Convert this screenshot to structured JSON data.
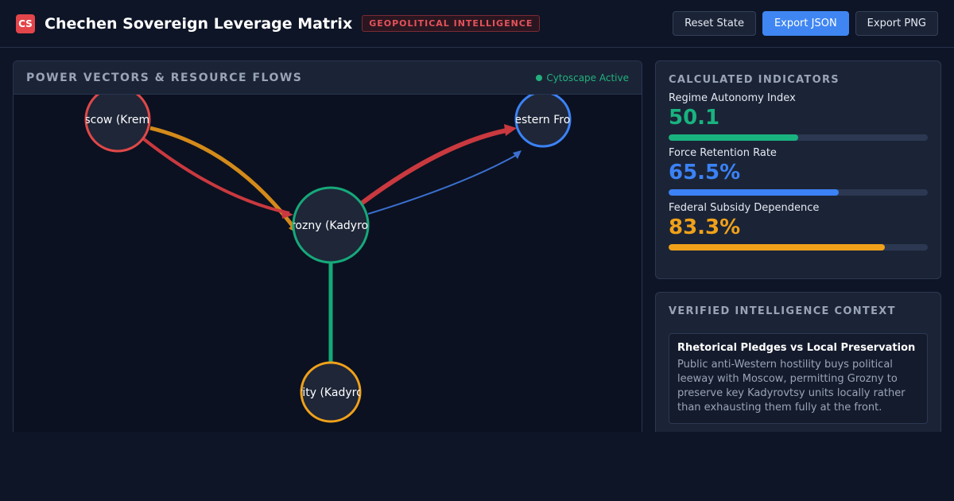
{
  "header": {
    "logo_text": "CS",
    "title": "Chechen Sovereign Leverage Matrix",
    "badge": "GEOPOLITICAL INTELLIGENCE",
    "buttons": {
      "reset": "Reset State",
      "export_json": "Export JSON",
      "export_png": "Export PNG"
    }
  },
  "graph": {
    "title": "POWER VECTORS & RESOURCE FLOWS",
    "status": "Cytoscape Active",
    "nodes": {
      "moscow": {
        "label": "Moscow (Kremlin)",
        "color": "#e04848"
      },
      "western": {
        "label": "Western Front",
        "color": "#3b82f6"
      },
      "grozny": {
        "label": "Grozny (Kadyrov)",
        "color": "#16a97a"
      },
      "security": {
        "label": "Security (Kadyrovtsy)",
        "color": "#f0a11a"
      }
    },
    "edge_colors": {
      "subsidy": "#d48a1a",
      "pressure": "#c9393f",
      "troops": "#c9393f",
      "rhetoric": "#3b6fd0",
      "retention": "#16a97a"
    }
  },
  "indicators": {
    "title": "CALCULATED INDICATORS",
    "items": [
      {
        "label": "Regime Autonomy Index",
        "value": "50.1",
        "fill": 0.501,
        "color": "#19b37f"
      },
      {
        "label": "Force Retention Rate",
        "value": "65.5%",
        "fill": 0.655,
        "color": "#3b82f6"
      },
      {
        "label": "Federal Subsidy Dependence",
        "value": "83.3%",
        "fill": 0.833,
        "color": "#f0a11a"
      }
    ]
  },
  "context": {
    "title": "VERIFIED INTELLIGENCE CONTEXT",
    "entries": [
      {
        "title": "Rhetorical Pledges vs Local Preservation",
        "body": "Public anti-Western hostility buys political leeway with Moscow, permitting Grozny to preserve key Kadyrovtsy units locally rather than exhausting them fully at the front."
      }
    ]
  }
}
